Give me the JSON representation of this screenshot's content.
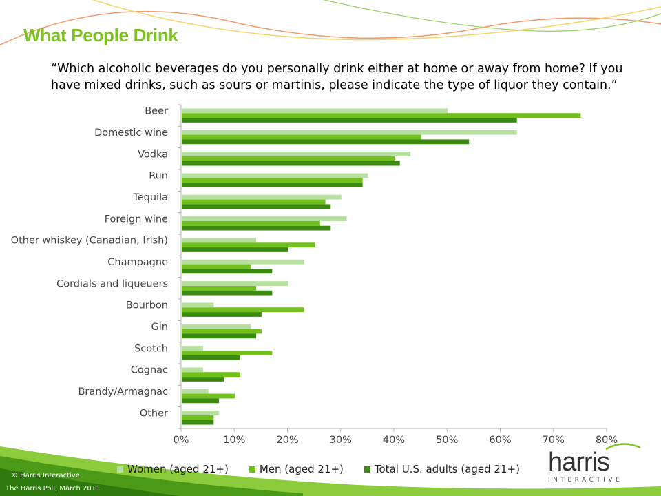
{
  "page": {
    "title": "What People Drink",
    "question": "“Which alcoholic beverages do you personally drink either at home or away from home?  If you have mixed drinks, such as sours or martinis, please indicate the type of liquor they contain.”"
  },
  "footer": {
    "copyright": "© Harris Interactive",
    "source": "The Harris Poll, March 2011"
  },
  "logo": {
    "word": "harris",
    "sub": "INTERACTIVE"
  },
  "colors": {
    "title": "#7cc321",
    "women": "#b7dfa0",
    "men": "#72c01e",
    "total": "#3a8a10"
  },
  "chart_data": {
    "type": "bar",
    "orientation": "horizontal",
    "categories": [
      "Beer",
      "Domestic wine",
      "Vodka",
      "Run",
      "Tequila",
      "Foreign wine",
      "Other whiskey (Canadian, Irish)",
      "Champagne",
      "Cordials and liqueuers",
      "Bourbon",
      "Gin",
      "Scotch",
      "Cognac",
      "Brandy/Armagnac",
      "Other"
    ],
    "series": [
      {
        "name": "Women (aged 21+)",
        "values": [
          50,
          63,
          43,
          35,
          30,
          31,
          14,
          23,
          20,
          6,
          13,
          4,
          4,
          5,
          7
        ]
      },
      {
        "name": "Men (aged 21+)",
        "values": [
          75,
          45,
          40,
          34,
          27,
          26,
          25,
          13,
          14,
          23,
          15,
          17,
          11,
          10,
          6
        ]
      },
      {
        "name": "Total U.S. adults (aged 21+)",
        "values": [
          63,
          54,
          41,
          34,
          28,
          28,
          20,
          17,
          17,
          15,
          14,
          11,
          8,
          7,
          6
        ]
      }
    ],
    "xlim": [
      0,
      80
    ],
    "xticks": [
      "0%",
      "10%",
      "20%",
      "30%",
      "40%",
      "50%",
      "60%",
      "70%",
      "80%"
    ],
    "grid": false,
    "legend_position": "bottom"
  }
}
